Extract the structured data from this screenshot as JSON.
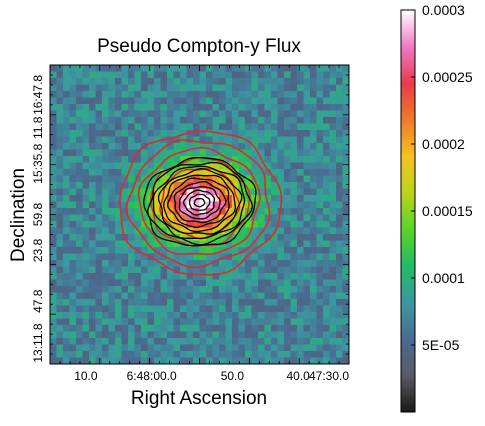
{
  "chart_data": {
    "type": "heatmap",
    "title": "Pseudo Compton-y Flux",
    "xlabel": "Right Ascension",
    "ylabel": "Declination",
    "x_ticks": [
      "10.0",
      "6:48:00.0",
      "50.0",
      "40.0",
      "47:30.0"
    ],
    "y_ticks": [
      "16:47.8",
      "11.8",
      "15:35.8",
      "59.8",
      "23.8",
      "47.8",
      "13:11.8"
    ],
    "colorbar": {
      "min": 0.0,
      "max": 0.0003,
      "ticks": [
        {
          "value": 0.0003,
          "label": "0.0003"
        },
        {
          "value": 0.00025,
          "label": "0.00025"
        },
        {
          "value": 0.0002,
          "label": "0.0002"
        },
        {
          "value": 0.00015,
          "label": "0.00015"
        },
        {
          "value": 0.0001,
          "label": "0.0001"
        },
        {
          "value": 5e-05,
          "label": "5E-05"
        }
      ],
      "colormap": [
        "#1a1a1a",
        "#5a5a66",
        "#4a6a90",
        "#3a9aa0",
        "#22bb66",
        "#5ad42a",
        "#bbd41e",
        "#f5c21e",
        "#f07a2a",
        "#e83a4a",
        "#f07ac8",
        "#ffffff"
      ]
    },
    "image": {
      "peak_value": 0.0003,
      "background_value": 7e-05,
      "peak_center_fraction": [
        0.5,
        0.46
      ],
      "peak_axes_fraction": [
        0.19,
        0.15
      ],
      "peak_tilt_deg": -5,
      "outer_axes_fraction": [
        0.27,
        0.24
      ]
    },
    "contours": {
      "black": {
        "count": 11,
        "color": "#000000"
      },
      "red": {
        "count": 5,
        "color": "#e02a2a"
      }
    }
  }
}
